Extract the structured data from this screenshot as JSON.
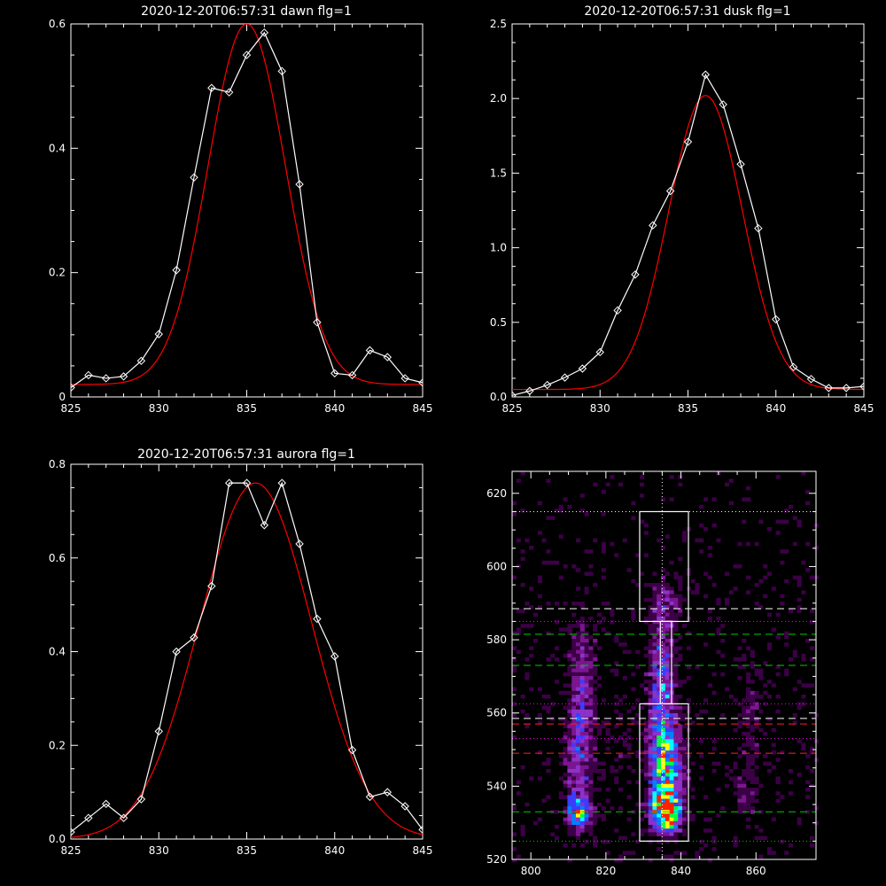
{
  "colors": {
    "background": "#000000",
    "axes": "#ffffff",
    "data_line": "#ffffff",
    "fit_line": "#ff0000",
    "green_guide": "#00cc00",
    "red_guide": "#ff2020",
    "white_guide": "#ffffff",
    "magenta_guide": "#ff00ff"
  },
  "chart_data": [
    {
      "id": "dawn",
      "type": "line",
      "title": "2020-12-20T06:57:31 dawn flg=1",
      "xlim": [
        825,
        845
      ],
      "ylim": [
        0,
        0.6
      ],
      "xticks": [
        "825",
        "830",
        "835",
        "840",
        "845"
      ],
      "yticks": [
        "0",
        "0.2",
        "0.4",
        "0.6"
      ],
      "series": [
        {
          "role": "data",
          "marker": "diamond",
          "x": [
            825,
            826,
            827,
            828,
            829,
            830,
            831,
            832,
            833,
            834,
            835,
            836,
            837,
            838,
            839,
            840,
            841,
            842,
            843,
            844,
            845
          ],
          "y": [
            0.015,
            0.035,
            0.03,
            0.033,
            0.058,
            0.101,
            0.204,
            0.353,
            0.497,
            0.49,
            0.55,
            0.586,
            0.524,
            0.342,
            0.12,
            0.038,
            0.035,
            0.075,
            0.064,
            0.03,
            0.023
          ]
        },
        {
          "role": "fit",
          "shape": "gaussian",
          "amplitude": 0.58,
          "center": 835,
          "sigma": 2.2,
          "offset": 0.02
        }
      ]
    },
    {
      "id": "dusk",
      "type": "line",
      "title": "2020-12-20T06:57:31 dusk flg=1",
      "xlim": [
        825,
        845
      ],
      "ylim": [
        0,
        2.5
      ],
      "xticks": [
        "825",
        "830",
        "835",
        "840",
        "845"
      ],
      "yticks": [
        "0.0",
        "0.5",
        "1.0",
        "1.5",
        "2.0",
        "2.5"
      ],
      "series": [
        {
          "role": "data",
          "marker": "diamond",
          "x": [
            825,
            826,
            827,
            828,
            829,
            830,
            831,
            832,
            833,
            834,
            835,
            836,
            837,
            838,
            839,
            840,
            841,
            842,
            843,
            844,
            845
          ],
          "y": [
            0.01,
            0.04,
            0.08,
            0.13,
            0.19,
            0.3,
            0.58,
            0.82,
            1.15,
            1.38,
            1.71,
            2.16,
            1.96,
            1.56,
            1.13,
            0.52,
            0.2,
            0.12,
            0.06,
            0.06,
            0.07
          ]
        },
        {
          "role": "fit",
          "shape": "gaussian",
          "amplitude": 1.97,
          "center": 836,
          "sigma": 2.1,
          "offset": 0.05
        }
      ]
    },
    {
      "id": "aurora",
      "type": "line",
      "title": "2020-12-20T06:57:31 aurora flg=1",
      "xlim": [
        825,
        845
      ],
      "ylim": [
        0,
        0.8
      ],
      "xticks": [
        "825",
        "830",
        "835",
        "840",
        "845"
      ],
      "yticks": [
        "0.0",
        "0.2",
        "0.4",
        "0.6",
        "0.8"
      ],
      "series": [
        {
          "role": "data",
          "marker": "diamond",
          "x": [
            825,
            826,
            827,
            828,
            829,
            830,
            831,
            832,
            833,
            834,
            835,
            836,
            837,
            838,
            839,
            840,
            841,
            842,
            843,
            844,
            845
          ],
          "y": [
            0.015,
            0.045,
            0.075,
            0.045,
            0.085,
            0.23,
            0.4,
            0.43,
            0.54,
            0.76,
            0.76,
            0.67,
            0.76,
            0.63,
            0.47,
            0.39,
            0.19,
            0.09,
            0.1,
            0.07,
            0.02
          ]
        },
        {
          "role": "fit",
          "shape": "gaussian",
          "amplitude": 0.76,
          "center": 835.5,
          "sigma": 3.2,
          "offset": 0.0
        }
      ]
    },
    {
      "id": "spectrogram",
      "type": "heatmap",
      "title": "",
      "xlim": [
        795,
        876
      ],
      "ylim": [
        520,
        626
      ],
      "xticks": [
        "800",
        "820",
        "840",
        "860"
      ],
      "yticks": [
        "520",
        "540",
        "560",
        "580",
        "600",
        "620"
      ],
      "colormap": [
        "#000000",
        "#3c0046",
        "#7a1690",
        "#8c32c8",
        "#3c3cff",
        "#0080ff",
        "#00ffff",
        "#00ff40",
        "#ffff00",
        "#ff2000"
      ],
      "sources": [
        {
          "x": 836,
          "y": 533,
          "sx": 2.6,
          "sy": 3.5,
          "amp": 1.0
        },
        {
          "x": 836,
          "y": 545,
          "sx": 3.0,
          "sy": 8.0,
          "amp": 0.55
        },
        {
          "x": 835,
          "y": 566,
          "sx": 2.5,
          "sy": 14.0,
          "amp": 0.38
        },
        {
          "x": 836,
          "y": 590,
          "sx": 3.0,
          "sy": 4.0,
          "amp": 0.18
        },
        {
          "x": 813,
          "y": 533,
          "sx": 2.2,
          "sy": 3.0,
          "amp": 0.55
        },
        {
          "x": 813,
          "y": 550,
          "sx": 2.5,
          "sy": 12.0,
          "amp": 0.3
        },
        {
          "x": 814,
          "y": 572,
          "sx": 2.5,
          "sy": 10.0,
          "amp": 0.2
        },
        {
          "x": 857,
          "y": 538,
          "sx": 2.0,
          "sy": 6.0,
          "amp": 0.15
        },
        {
          "x": 859,
          "y": 558,
          "sx": 2.5,
          "sy": 10.0,
          "amp": 0.12
        },
        {
          "x": 824,
          "y": 553,
          "sx": 2.5,
          "sy": 14.0,
          "amp": 0.08
        }
      ],
      "guides": [
        {
          "y": 615,
          "style": "dotted",
          "color": "white"
        },
        {
          "y": 588.5,
          "style": "dashed",
          "color": "white"
        },
        {
          "y": 585,
          "style": "dotted",
          "color": "magenta"
        },
        {
          "y": 581.5,
          "style": "dashed",
          "color": "green"
        },
        {
          "y": 573,
          "style": "dashed",
          "color": "green"
        },
        {
          "y": 562.5,
          "style": "dotted",
          "color": "magenta"
        },
        {
          "y": 558.5,
          "style": "dashed",
          "color": "white"
        },
        {
          "y": 557,
          "style": "dashed",
          "color": "red"
        },
        {
          "y": 553,
          "style": "dotted",
          "color": "magenta"
        },
        {
          "y": 549,
          "style": "dashed",
          "color": "red"
        },
        {
          "y": 533,
          "style": "dashed",
          "color": "green"
        },
        {
          "y": 525,
          "style": "dotted",
          "color": "green"
        }
      ],
      "vertical_guide": {
        "x": 835,
        "style": "dotted",
        "color": "white"
      },
      "boxes": [
        {
          "x0": 829,
          "x1": 842,
          "y0": 585,
          "y1": 615
        },
        {
          "x0": 834.5,
          "x1": 837.5,
          "y0": 562.5,
          "y1": 585
        },
        {
          "x0": 829,
          "x1": 842,
          "y0": 525,
          "y1": 562.5
        }
      ]
    }
  ]
}
